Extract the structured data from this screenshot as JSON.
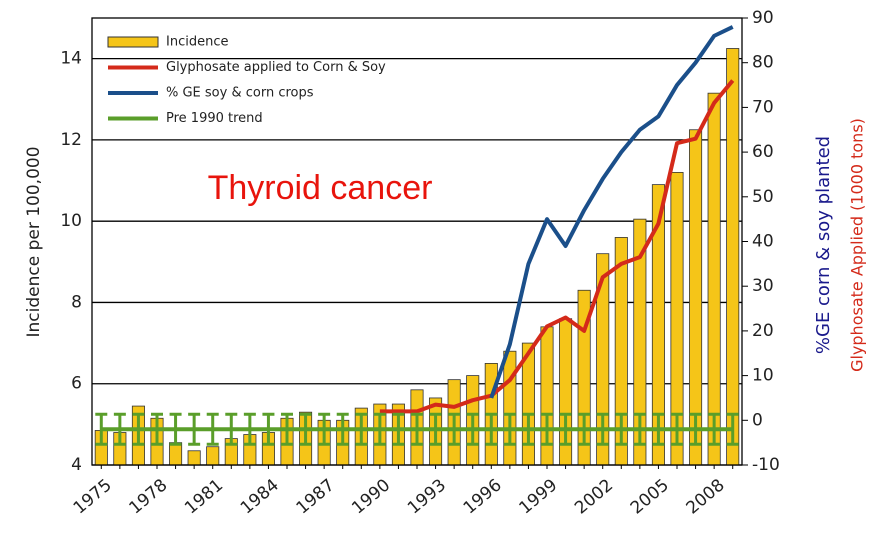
{
  "chart_data": {
    "type": "bar",
    "annotation": "Thyroid cancer",
    "ylabel": "Incidence per 100,000",
    "y2label": "%GE corn & soy planted",
    "y2label2": "Glyphosate Applied (1000 tons)",
    "categories": [
      "1975",
      null,
      null,
      "1978",
      null,
      null,
      "1981",
      null,
      null,
      "1984",
      null,
      null,
      "1987",
      null,
      null,
      "1990",
      null,
      null,
      "1993",
      null,
      null,
      "1996",
      null,
      null,
      "1999",
      null,
      null,
      "2002",
      null,
      null,
      "2005",
      null,
      null,
      "2008",
      null
    ],
    "ylim": [
      4,
      15
    ],
    "yticks": [
      4,
      6,
      8,
      10,
      12,
      14
    ],
    "y2lim": [
      -10,
      90
    ],
    "y2ticks": [
      -10,
      0,
      10,
      20,
      30,
      40,
      50,
      60,
      70,
      80,
      90
    ],
    "grid": true,
    "legend": "upper left",
    "series": [
      {
        "name": "Incidence",
        "type": "bar",
        "color": "#f5c518",
        "values": [
          4.85,
          4.8,
          5.45,
          5.15,
          4.55,
          4.35,
          4.45,
          4.65,
          4.75,
          4.8,
          5.15,
          5.3,
          5.1,
          5.1,
          5.4,
          5.5,
          5.5,
          5.85,
          5.65,
          6.1,
          6.2,
          6.5,
          6.8,
          7.0,
          7.4,
          7.6,
          8.3,
          9.2,
          9.6,
          10.05,
          10.9,
          11.2,
          12.25,
          13.15,
          14.25
        ]
      },
      {
        "name": "Glyphosate applied to Corn & Soy",
        "type": "line",
        "axis": "y2",
        "color": "#d42a1a",
        "values": [
          null,
          null,
          null,
          null,
          null,
          null,
          null,
          null,
          null,
          null,
          null,
          null,
          null,
          null,
          null,
          2,
          2,
          2,
          3.5,
          3,
          4.5,
          5.5,
          9,
          15,
          21,
          23,
          20,
          32,
          35,
          36.5,
          44,
          62,
          63,
          71,
          76
        ]
      },
      {
        "name": "% GE soy & corn crops",
        "type": "line",
        "axis": "y2",
        "color": "#1b4f8a",
        "values": [
          null,
          null,
          null,
          null,
          null,
          null,
          null,
          null,
          null,
          null,
          null,
          null,
          null,
          null,
          null,
          null,
          null,
          null,
          null,
          null,
          null,
          5,
          17,
          35,
          45,
          39,
          47,
          54,
          60,
          65,
          68,
          75,
          80,
          86,
          88
        ]
      },
      {
        "name": "Pre 1990 trend",
        "type": "errorline",
        "color": "#5a9e2a",
        "values": [
          4.88,
          4.88,
          4.88,
          4.88,
          4.88,
          4.88,
          4.88,
          4.88,
          4.88,
          4.88,
          4.88,
          4.88,
          4.88,
          4.88,
          4.88,
          4.88,
          4.88,
          4.88,
          4.88,
          4.88,
          4.88,
          4.88,
          4.88,
          4.88,
          4.88,
          4.88,
          4.88,
          4.88,
          4.88,
          4.88,
          4.88,
          4.88,
          4.88,
          4.88,
          4.88
        ],
        "errors": [
          0.37,
          0.37,
          0.37,
          0.37,
          0.37,
          0.37,
          0.37,
          0.37,
          0.37,
          0.37,
          0.37,
          0.37,
          0.37,
          0.37,
          0.37,
          0.37,
          0.37,
          0.37,
          0.37,
          0.37,
          0.37,
          0.37,
          0.37,
          0.37,
          0.37,
          0.37,
          0.37,
          0.37,
          0.37,
          0.37,
          0.37,
          0.37,
          0.37,
          0.37,
          0.37
        ]
      }
    ]
  }
}
